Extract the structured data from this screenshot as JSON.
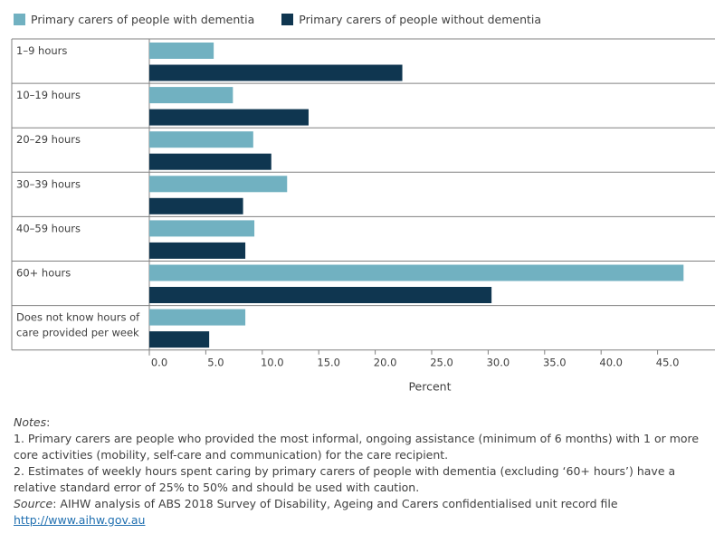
{
  "legend": [
    {
      "label": "Primary carers of people with dementia",
      "color": "#71b1c1"
    },
    {
      "label": "Primary carers of people without dementia",
      "color": "#0f3650"
    }
  ],
  "chart_data": {
    "type": "bar",
    "orientation": "horizontal",
    "categories": [
      [
        "1–9 hours"
      ],
      [
        "10–19 hours"
      ],
      [
        "20–29 hours"
      ],
      [
        "30–39 hours"
      ],
      [
        "40–59 hours"
      ],
      [
        "60+ hours"
      ],
      [
        "Does not know hours of",
        "care provided per week"
      ]
    ],
    "series": [
      {
        "name": "Primary carers of people with dementia",
        "values": [
          5.7,
          7.4,
          9.2,
          12.2,
          9.3,
          47.3,
          8.5
        ]
      },
      {
        "name": "Primary carers of people without dementia",
        "values": [
          22.4,
          14.1,
          10.8,
          8.3,
          8.5,
          30.3,
          5.3
        ]
      }
    ],
    "xlabel": "Percent",
    "xlim": [
      0,
      50
    ],
    "xticks": [
      0,
      5,
      10,
      15,
      20,
      25,
      30,
      35,
      40,
      45
    ],
    "xtick_labels": [
      "0.0",
      "5.0",
      "10.0",
      "15.0",
      "20.0",
      "25.0",
      "30.0",
      "35.0",
      "40.0",
      "45.0"
    ],
    "grid": false,
    "legend_position": "top-left",
    "colors": {
      "with_dementia": "#71b1c1",
      "without_dementia": "#0f3650",
      "axis": "#808080"
    }
  },
  "notes": {
    "heading": "Notes",
    "heading_suffix": ":",
    "note1": "1. Primary carers are people who provided the most informal, ongoing assistance (minimum of 6 months) with 1 or more core activities (mobility, self-care and communication) for the care recipient.",
    "note2": "2. Estimates of weekly hours spent caring by primary carers of people with dementia (excluding ‘60+ hours’) have a relative standard error of 25% to 50% and should be used with caution.",
    "source_label": "Source",
    "source_text": ": AIHW analysis of ABS 2018 Survey of Disability, Ageing and Carers confidentialised unit record file",
    "link": "http://www.aihw.gov.au"
  }
}
